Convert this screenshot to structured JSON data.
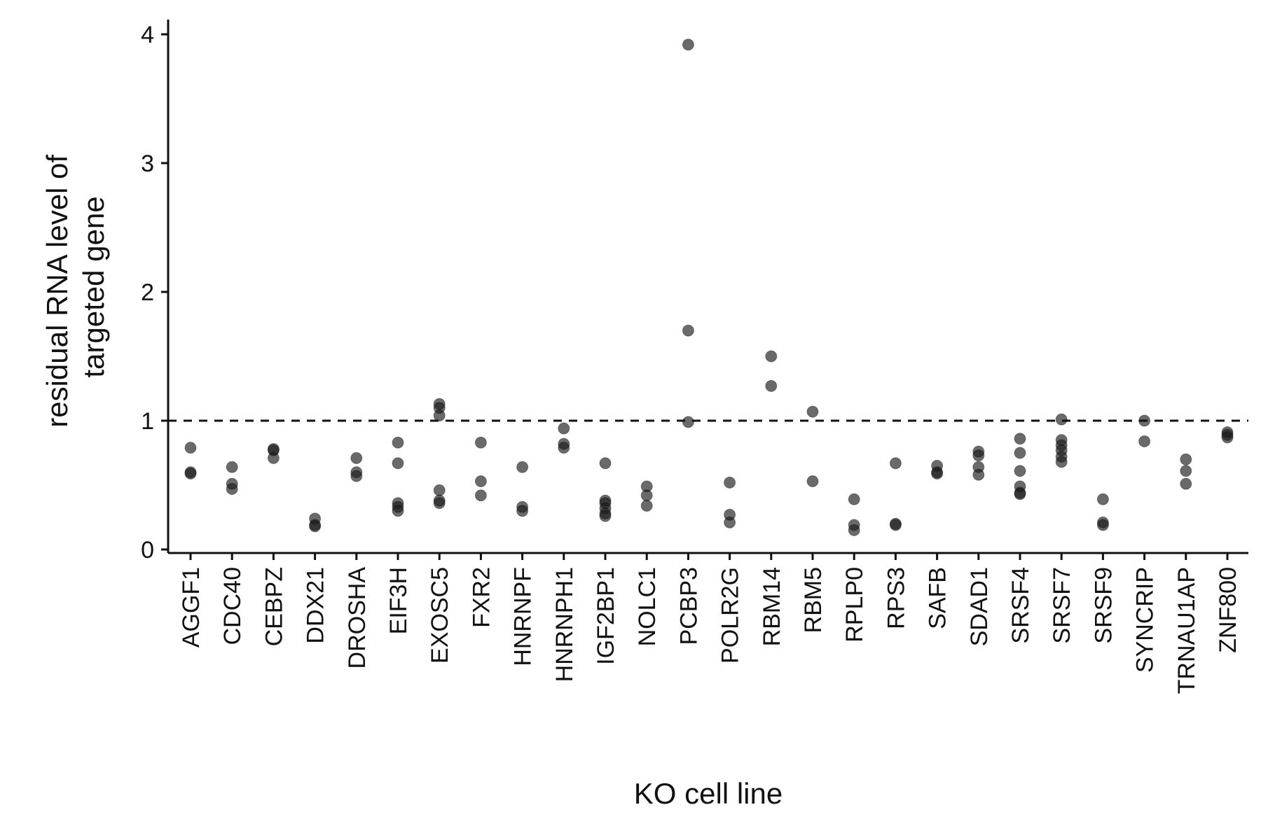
{
  "chart_data": {
    "type": "scatter",
    "title": "",
    "xlabel": "KO cell line",
    "ylabel_lines": [
      "residual RNA level of",
      "targeted gene"
    ],
    "ylim": [
      -0.03,
      4.1
    ],
    "yticks": [
      0,
      1,
      2,
      3,
      4
    ],
    "reference_line": {
      "y": 1,
      "style": "dashed"
    },
    "grid": false,
    "legend": "none",
    "point_color": "#1a1a1a",
    "categories": [
      "AGGF1",
      "CDC40",
      "CEBPZ",
      "DDX21",
      "DROSHA",
      "EIF3H",
      "EXOSC5",
      "FXR2",
      "HNRNPF",
      "HNRNPH1",
      "IGF2BP1",
      "NOLC1",
      "PCBP3",
      "POLR2G",
      "RBM14",
      "RBM5",
      "RPLP0",
      "RPS3",
      "SAFB",
      "SDAD1",
      "SRSF4",
      "SRSF7",
      "SRSF9",
      "SYNCRIP",
      "TRNAU1AP",
      "ZNF800"
    ],
    "points": [
      {
        "x": "AGGF1",
        "y": 0.79
      },
      {
        "x": "AGGF1",
        "y": 0.6
      },
      {
        "x": "AGGF1",
        "y": 0.59
      },
      {
        "x": "CDC40",
        "y": 0.64
      },
      {
        "x": "CDC40",
        "y": 0.51
      },
      {
        "x": "CDC40",
        "y": 0.47
      },
      {
        "x": "CEBPZ",
        "y": 0.78
      },
      {
        "x": "CEBPZ",
        "y": 0.77
      },
      {
        "x": "CEBPZ",
        "y": 0.71
      },
      {
        "x": "DDX21",
        "y": 0.24
      },
      {
        "x": "DDX21",
        "y": 0.19
      },
      {
        "x": "DDX21",
        "y": 0.18
      },
      {
        "x": "DROSHA",
        "y": 0.71
      },
      {
        "x": "DROSHA",
        "y": 0.6
      },
      {
        "x": "DROSHA",
        "y": 0.57
      },
      {
        "x": "EIF3H",
        "y": 0.83
      },
      {
        "x": "EIF3H",
        "y": 0.67
      },
      {
        "x": "EIF3H",
        "y": 0.36
      },
      {
        "x": "EIF3H",
        "y": 0.33
      },
      {
        "x": "EIF3H",
        "y": 0.3
      },
      {
        "x": "EXOSC5",
        "y": 1.13
      },
      {
        "x": "EXOSC5",
        "y": 1.1
      },
      {
        "x": "EXOSC5",
        "y": 1.04
      },
      {
        "x": "EXOSC5",
        "y": 0.46
      },
      {
        "x": "EXOSC5",
        "y": 0.38
      },
      {
        "x": "EXOSC5",
        "y": 0.36
      },
      {
        "x": "FXR2",
        "y": 0.83
      },
      {
        "x": "FXR2",
        "y": 0.53
      },
      {
        "x": "FXR2",
        "y": 0.42
      },
      {
        "x": "HNRNPF",
        "y": 0.64
      },
      {
        "x": "HNRNPF",
        "y": 0.33
      },
      {
        "x": "HNRNPF",
        "y": 0.3
      },
      {
        "x": "HNRNPH1",
        "y": 0.94
      },
      {
        "x": "HNRNPH1",
        "y": 0.82
      },
      {
        "x": "HNRNPH1",
        "y": 0.79
      },
      {
        "x": "IGF2BP1",
        "y": 0.67
      },
      {
        "x": "IGF2BP1",
        "y": 0.38
      },
      {
        "x": "IGF2BP1",
        "y": 0.36
      },
      {
        "x": "IGF2BP1",
        "y": 0.32
      },
      {
        "x": "IGF2BP1",
        "y": 0.28
      },
      {
        "x": "IGF2BP1",
        "y": 0.26
      },
      {
        "x": "NOLC1",
        "y": 0.49
      },
      {
        "x": "NOLC1",
        "y": 0.42
      },
      {
        "x": "NOLC1",
        "y": 0.34
      },
      {
        "x": "PCBP3",
        "y": 3.92
      },
      {
        "x": "PCBP3",
        "y": 1.7
      },
      {
        "x": "PCBP3",
        "y": 0.99
      },
      {
        "x": "POLR2G",
        "y": 0.52
      },
      {
        "x": "POLR2G",
        "y": 0.27
      },
      {
        "x": "POLR2G",
        "y": 0.21
      },
      {
        "x": "RBM14",
        "y": 1.5
      },
      {
        "x": "RBM14",
        "y": 1.27
      },
      {
        "x": "RBM5",
        "y": 1.07
      },
      {
        "x": "RBM5",
        "y": 0.53
      },
      {
        "x": "RPLP0",
        "y": 0.39
      },
      {
        "x": "RPLP0",
        "y": 0.19
      },
      {
        "x": "RPLP0",
        "y": 0.15
      },
      {
        "x": "RPS3",
        "y": 0.67
      },
      {
        "x": "RPS3",
        "y": 0.2
      },
      {
        "x": "RPS3",
        "y": 0.19
      },
      {
        "x": "SAFB",
        "y": 0.65
      },
      {
        "x": "SAFB",
        "y": 0.6
      },
      {
        "x": "SAFB",
        "y": 0.59
      },
      {
        "x": "SDAD1",
        "y": 0.76
      },
      {
        "x": "SDAD1",
        "y": 0.73
      },
      {
        "x": "SDAD1",
        "y": 0.64
      },
      {
        "x": "SDAD1",
        "y": 0.58
      },
      {
        "x": "SRSF4",
        "y": 0.86
      },
      {
        "x": "SRSF4",
        "y": 0.75
      },
      {
        "x": "SRSF4",
        "y": 0.61
      },
      {
        "x": "SRSF4",
        "y": 0.49
      },
      {
        "x": "SRSF4",
        "y": 0.44
      },
      {
        "x": "SRSF4",
        "y": 0.43
      },
      {
        "x": "SRSF7",
        "y": 1.01
      },
      {
        "x": "SRSF7",
        "y": 0.85
      },
      {
        "x": "SRSF7",
        "y": 0.81
      },
      {
        "x": "SRSF7",
        "y": 0.77
      },
      {
        "x": "SRSF7",
        "y": 0.72
      },
      {
        "x": "SRSF7",
        "y": 0.68
      },
      {
        "x": "SRSF9",
        "y": 0.39
      },
      {
        "x": "SRSF9",
        "y": 0.21
      },
      {
        "x": "SRSF9",
        "y": 0.19
      },
      {
        "x": "SYNCRIP",
        "y": 1.0
      },
      {
        "x": "SYNCRIP",
        "y": 0.84
      },
      {
        "x": "TRNAU1AP",
        "y": 0.7
      },
      {
        "x": "TRNAU1AP",
        "y": 0.61
      },
      {
        "x": "TRNAU1AP",
        "y": 0.51
      },
      {
        "x": "ZNF800",
        "y": 0.91
      },
      {
        "x": "ZNF800",
        "y": 0.89
      },
      {
        "x": "ZNF800",
        "y": 0.87
      }
    ]
  }
}
